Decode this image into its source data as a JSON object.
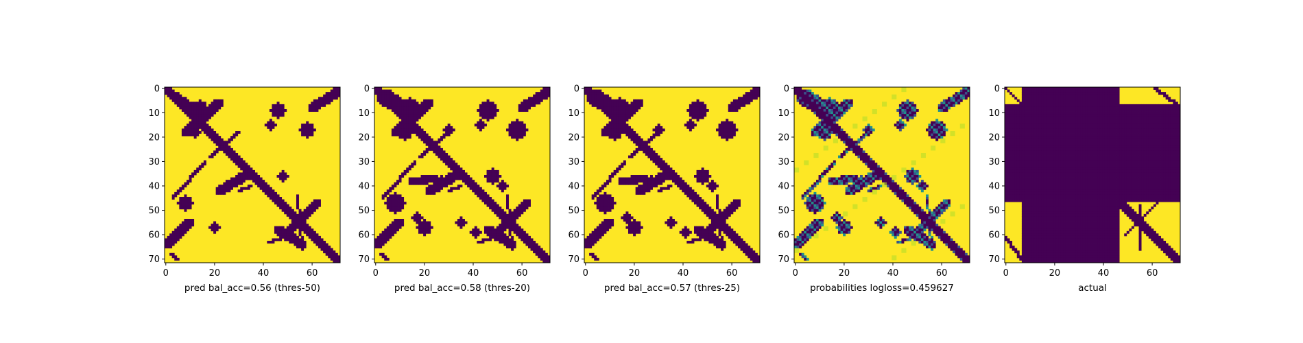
{
  "colors": {
    "yellow": "#fde725",
    "purple": "#440154",
    "teal": "#21918c",
    "green": "#5ec962",
    "blue": "#3b528b",
    "light-green": "#b5de2b",
    "axis": "#000000",
    "background": "#ffffff"
  },
  "chart_data": [
    {
      "type": "heatmap",
      "xlabel": "pred bal_acc=0.56 (thres-50)",
      "size": 72,
      "xticks": [
        0,
        20,
        40,
        60
      ],
      "yticks": [
        0,
        10,
        20,
        30,
        40,
        50,
        60,
        70
      ],
      "values_description": "binary contact prediction",
      "threshold": 0.5,
      "colormap": "viridis"
    },
    {
      "type": "heatmap",
      "xlabel": "pred bal_acc=0.58 (thres-20)",
      "size": 72,
      "xticks": [
        0,
        20,
        40,
        60
      ],
      "yticks": [
        0,
        10,
        20,
        30,
        40,
        50,
        60,
        70
      ],
      "threshold": 0.2,
      "colormap": "viridis"
    },
    {
      "type": "heatmap",
      "xlabel": "pred bal_acc=0.57 (thres-25)",
      "size": 72,
      "xticks": [
        0,
        20,
        40,
        60
      ],
      "yticks": [
        0,
        10,
        20,
        30,
        40,
        50,
        60,
        70
      ],
      "threshold": 0.25,
      "colormap": "viridis"
    },
    {
      "type": "heatmap",
      "xlabel": "probabilities logloss=0.459627",
      "size": 72,
      "xticks": [
        0,
        20,
        40,
        60
      ],
      "yticks": [
        0,
        10,
        20,
        30,
        40,
        50,
        60,
        70
      ],
      "colormap": "viridis",
      "continuous": true
    },
    {
      "type": "heatmap",
      "xlabel": "actual",
      "size": 72,
      "xticks": [
        0,
        20,
        40,
        60
      ],
      "yticks": [
        0,
        10,
        20,
        30,
        40,
        50,
        60,
        70
      ],
      "colormap": "viridis",
      "masked_block": {
        "start": 7,
        "end": 47
      }
    }
  ]
}
